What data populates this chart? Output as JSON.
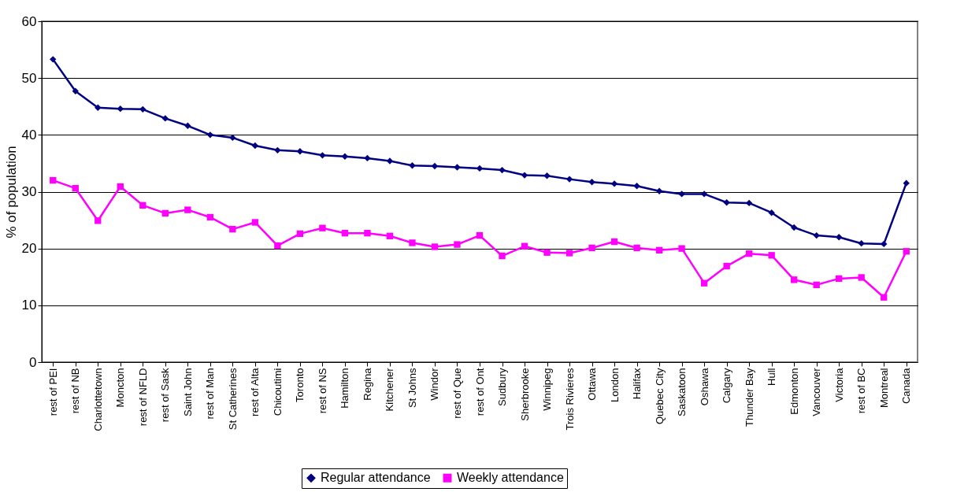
{
  "chart_data": {
    "type": "line",
    "ylabel": "% of population",
    "categories": [
      "rest of PEI",
      "rest of NB",
      "Charlottetown",
      "Moncton",
      "rest of NFLD",
      "rest of Sask",
      "Saint John",
      "rest of Man",
      "St Catherines",
      "rest of Alta",
      "Chicoutimi",
      "Toronto",
      "rest of NS",
      "Hamilton",
      "Regina",
      "Kitchener",
      "St Johns",
      "Windor",
      "rest of Que",
      "rest of Ont",
      "Sudbury",
      "Sherbrooke",
      "Winnipeg",
      "Trois Rivieres",
      "Ottawa",
      "London",
      "Halifax",
      "Quebec City",
      "Saskatoon",
      "Oshawa",
      "Calgary",
      "Thunder Bay",
      "Hull",
      "Edmonton",
      "Vancouver",
      "Victoria",
      "rest of BC",
      "Montreal",
      "Canada"
    ],
    "series": [
      {
        "name": "Regular attendance",
        "color": "#000080",
        "marker": "diamond",
        "values": [
          53.3,
          47.7,
          44.8,
          44.6,
          44.5,
          42.9,
          41.6,
          40.0,
          39.5,
          38.1,
          37.3,
          37.1,
          36.4,
          36.2,
          35.9,
          35.4,
          34.6,
          34.5,
          34.3,
          34.1,
          33.8,
          32.9,
          32.8,
          32.2,
          31.7,
          31.4,
          31.0,
          30.1,
          29.6,
          29.6,
          28.1,
          28.0,
          26.3,
          23.7,
          22.3,
          22.0,
          20.9,
          20.8,
          31.5
        ]
      },
      {
        "name": "Weekly attendance",
        "color": "#ff00ff",
        "marker": "square",
        "values": [
          32.0,
          30.6,
          24.9,
          30.9,
          27.6,
          26.2,
          26.8,
          25.5,
          23.4,
          24.6,
          20.5,
          22.6,
          23.6,
          22.7,
          22.7,
          22.2,
          21.0,
          20.3,
          20.7,
          22.3,
          18.7,
          20.4,
          19.3,
          19.2,
          20.1,
          21.2,
          20.1,
          19.7,
          20.0,
          13.9,
          16.9,
          19.1,
          18.8,
          14.5,
          13.6,
          14.7,
          14.9,
          11.4,
          19.5
        ]
      }
    ],
    "ylim": [
      0,
      60
    ],
    "yticks": [
      0,
      10,
      20,
      30,
      40,
      50,
      60
    ],
    "grid": "y",
    "legend": "bottom",
    "line_style": "solid"
  }
}
